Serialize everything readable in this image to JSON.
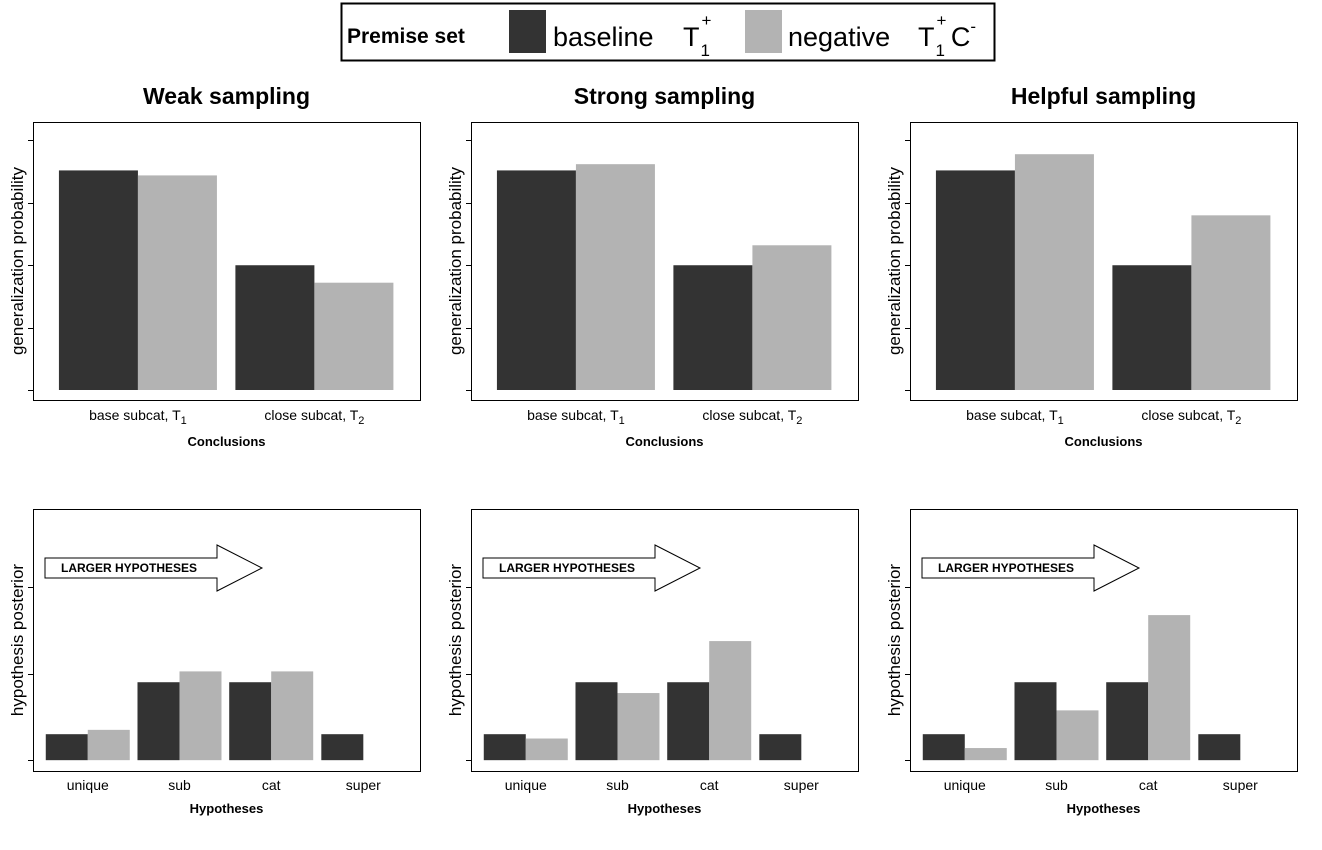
{
  "legend": {
    "header": "Premise set",
    "entries": [
      {
        "label": "baseline",
        "symbol": "T",
        "sub": "1",
        "sup": "+",
        "suffix": "",
        "suffix_sup": "",
        "color": "#333333"
      },
      {
        "label": "negative",
        "symbol": "T",
        "sub": "1",
        "sup": "+",
        "suffix": "C",
        "suffix_sup": "-",
        "color": "#b3b3b3"
      }
    ]
  },
  "arrow_label": "LARGER HYPOTHESES",
  "chart_data": [
    {
      "type": "bar",
      "title": "Weak sampling",
      "xlabel": "Conclusions",
      "ylabel": "generalization probability",
      "categories": [
        {
          "label": "base subcat,  T",
          "sub": "1"
        },
        {
          "label": "close subcat,  T",
          "sub": "2"
        }
      ],
      "ylim": [
        0,
        1.05
      ],
      "series": [
        {
          "name": "baseline",
          "values": [
            0.88,
            0.5
          ]
        },
        {
          "name": "negative",
          "values": [
            0.86,
            0.43
          ]
        }
      ]
    },
    {
      "type": "bar",
      "title": "Strong sampling",
      "xlabel": "Conclusions",
      "ylabel": "generalization probability",
      "categories": [
        {
          "label": "base subcat,  T",
          "sub": "1"
        },
        {
          "label": "close subcat,  T",
          "sub": "2"
        }
      ],
      "ylim": [
        0,
        1.05
      ],
      "series": [
        {
          "name": "baseline",
          "values": [
            0.88,
            0.5
          ]
        },
        {
          "name": "negative",
          "values": [
            0.905,
            0.58
          ]
        }
      ]
    },
    {
      "type": "bar",
      "title": "Helpful sampling",
      "xlabel": "Conclusions",
      "ylabel": "generalization probability",
      "categories": [
        {
          "label": "base subcat,  T",
          "sub": "1"
        },
        {
          "label": "close subcat,  T",
          "sub": "2"
        }
      ],
      "ylim": [
        0,
        1.05
      ],
      "series": [
        {
          "name": "baseline",
          "values": [
            0.88,
            0.5
          ]
        },
        {
          "name": "negative",
          "values": [
            0.945,
            0.7
          ]
        }
      ]
    },
    {
      "type": "bar",
      "xlabel": "Hypotheses",
      "ylabel": "hypothesis posterior",
      "categories": [
        {
          "label": "unique"
        },
        {
          "label": "sub"
        },
        {
          "label": "cat"
        },
        {
          "label": "super"
        }
      ],
      "ylim": [
        -0.025,
        0.58
      ],
      "series": [
        {
          "name": "baseline",
          "values": [
            0.06,
            0.18,
            0.18,
            0.06
          ]
        },
        {
          "name": "negative",
          "values": [
            0.07,
            0.205,
            0.205,
            0.0
          ]
        }
      ]
    },
    {
      "type": "bar",
      "xlabel": "Hypotheses",
      "ylabel": "hypothesis posterior",
      "categories": [
        {
          "label": "unique"
        },
        {
          "label": "sub"
        },
        {
          "label": "cat"
        },
        {
          "label": "super"
        }
      ],
      "ylim": [
        -0.025,
        0.58
      ],
      "series": [
        {
          "name": "baseline",
          "values": [
            0.06,
            0.18,
            0.18,
            0.06
          ]
        },
        {
          "name": "negative",
          "values": [
            0.05,
            0.155,
            0.275,
            0.0
          ]
        }
      ]
    },
    {
      "type": "bar",
      "xlabel": "Hypotheses",
      "ylabel": "hypothesis posterior",
      "categories": [
        {
          "label": "unique"
        },
        {
          "label": "sub"
        },
        {
          "label": "cat"
        },
        {
          "label": "super"
        }
      ],
      "ylim": [
        -0.025,
        0.58
      ],
      "series": [
        {
          "name": "baseline",
          "values": [
            0.06,
            0.18,
            0.18,
            0.06
          ]
        },
        {
          "name": "negative",
          "values": [
            0.028,
            0.115,
            0.335,
            0.0
          ]
        }
      ]
    }
  ]
}
